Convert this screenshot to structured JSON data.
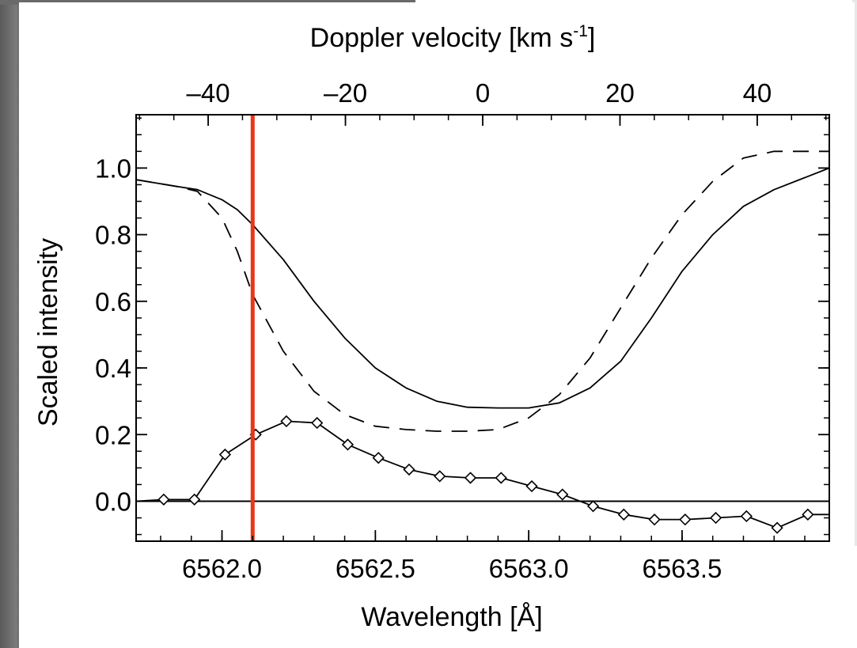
{
  "chart_data": {
    "type": "line",
    "xlabel": "Wavelength [Å]",
    "x2label_main": "Doppler velocity [km s",
    "x2label_sup": "-1",
    "x2label_close": "]",
    "ylabel": "Scaled intensity",
    "xlim": [
      6561.72,
      6563.98
    ],
    "ylim": [
      -0.12,
      1.16
    ],
    "velocity_lim": [
      -50.5,
      50.5
    ],
    "x_ticks": [
      {
        "value": 6562.0,
        "label": "6562.0"
      },
      {
        "value": 6562.5,
        "label": "6562.5"
      },
      {
        "value": 6563.0,
        "label": "6563.0"
      },
      {
        "value": 6563.5,
        "label": "6563.5"
      }
    ],
    "x_minor_step": 0.1,
    "v_ticks": [
      {
        "value": -40,
        "label": "–40"
      },
      {
        "value": -20,
        "label": "–20"
      },
      {
        "value": 0,
        "label": "0"
      },
      {
        "value": 20,
        "label": "20"
      },
      {
        "value": 40,
        "label": "40"
      }
    ],
    "v_minor_step": 5,
    "y_ticks": [
      {
        "value": 0.0,
        "label": "0.0"
      },
      {
        "value": 0.2,
        "label": "0.2"
      },
      {
        "value": 0.4,
        "label": "0.4"
      },
      {
        "value": 0.6,
        "label": "0.6"
      },
      {
        "value": 0.8,
        "label": "0.8"
      },
      {
        "value": 1.0,
        "label": "1.0"
      }
    ],
    "y_minor_step": 0.05,
    "zero_line": 0.0,
    "marker_line": {
      "x": 6562.1,
      "color": "#e8361a"
    },
    "series": [
      {
        "style": "solid",
        "x": [
          6561.72,
          6561.85,
          6561.92,
          6562.0,
          6562.05,
          6562.1,
          6562.2,
          6562.3,
          6562.4,
          6562.5,
          6562.6,
          6562.7,
          6562.8,
          6562.9,
          6563.0,
          6563.1,
          6563.2,
          6563.3,
          6563.4,
          6563.5,
          6563.6,
          6563.7,
          6563.8,
          6563.98
        ],
        "y": [
          0.965,
          0.945,
          0.935,
          0.905,
          0.875,
          0.83,
          0.725,
          0.6,
          0.49,
          0.4,
          0.34,
          0.3,
          0.282,
          0.28,
          0.28,
          0.295,
          0.34,
          0.42,
          0.55,
          0.69,
          0.8,
          0.885,
          0.935,
          1.0
        ]
      },
      {
        "style": "dashed",
        "x": [
          6561.72,
          6561.85,
          6561.92,
          6562.0,
          6562.05,
          6562.1,
          6562.2,
          6562.3,
          6562.4,
          6562.5,
          6562.6,
          6562.7,
          6562.8,
          6562.9,
          6563.0,
          6563.1,
          6563.2,
          6563.3,
          6563.4,
          6563.5,
          6563.6,
          6563.7,
          6563.8,
          6563.98
        ],
        "y": [
          0.965,
          0.945,
          0.93,
          0.85,
          0.75,
          0.62,
          0.45,
          0.33,
          0.26,
          0.225,
          0.215,
          0.21,
          0.21,
          0.215,
          0.25,
          0.32,
          0.43,
          0.58,
          0.73,
          0.86,
          0.96,
          1.03,
          1.05,
          1.05
        ]
      },
      {
        "style": "diamonds",
        "x": [
          6561.72,
          6561.81,
          6561.91,
          6562.01,
          6562.11,
          6562.21,
          6562.31,
          6562.41,
          6562.51,
          6562.61,
          6562.71,
          6562.81,
          6562.91,
          6563.01,
          6563.11,
          6563.21,
          6563.31,
          6563.41,
          6563.51,
          6563.61,
          6563.71,
          6563.81,
          6563.91,
          6563.98
        ],
        "y": [
          0.0,
          0.005,
          0.005,
          0.14,
          0.2,
          0.24,
          0.235,
          0.17,
          0.13,
          0.095,
          0.075,
          0.07,
          0.07,
          0.045,
          0.02,
          -0.015,
          -0.04,
          -0.055,
          -0.055,
          -0.05,
          -0.045,
          -0.08,
          -0.04,
          -0.04
        ],
        "markers": [
          false,
          true,
          true,
          true,
          true,
          true,
          true,
          true,
          true,
          true,
          true,
          true,
          true,
          true,
          true,
          true,
          true,
          true,
          true,
          true,
          true,
          true,
          true,
          false
        ]
      }
    ]
  }
}
